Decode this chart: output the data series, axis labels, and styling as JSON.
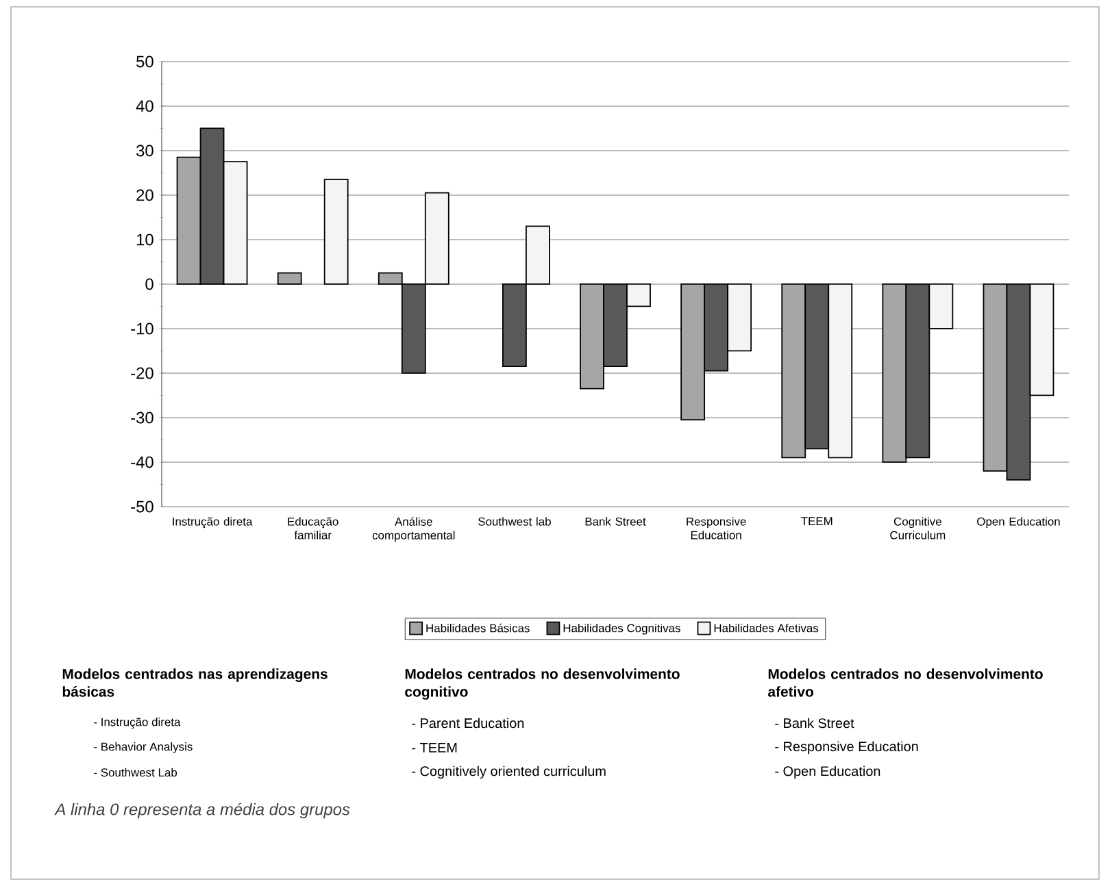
{
  "chart_data": {
    "type": "bar",
    "categories": [
      "Instrução direta",
      "Educação familiar",
      "Análise comportamental",
      "Southwest lab",
      "Bank Street",
      "Responsive Education",
      "TEEM",
      "Cognitive Curriculum",
      "Open Education"
    ],
    "series": [
      {
        "name": "Habilidades Básicas",
        "color": "#a6a6a6",
        "values": [
          28.5,
          2.5,
          2.5,
          null,
          -23.5,
          -30.5,
          -39,
          -40,
          -42
        ]
      },
      {
        "name": "Habilidades Cognitivas",
        "color": "#595959",
        "values": [
          35,
          null,
          -20,
          -18.5,
          -18.5,
          -19.5,
          -37,
          -39,
          -44
        ]
      },
      {
        "name": "Habilidades Afetivas",
        "color": "#f4f4f4",
        "values": [
          27.5,
          23.5,
          20.5,
          13,
          -5,
          -15,
          -39,
          -10,
          -25
        ]
      }
    ],
    "ylim": [
      -50,
      50
    ],
    "yticks": [
      -50,
      -40,
      -30,
      -20,
      -10,
      0,
      10,
      20,
      30,
      40,
      50
    ],
    "grid": "y",
    "legend": "bottom",
    "annotations": [
      "Modelos centrados nas aprendizagens básicas",
      "- Instrução direta",
      "- Behavior Analysis",
      "- Southwest Lab",
      "Modelos centrados no desenvolvimento cognitivo",
      "-   Parent Education",
      "-   TEEM",
      "-   Cognitively oriented curriculum",
      "Modelos centrados no desenvolvimento afetivo",
      "-   Bank Street",
      "-   Responsive Education",
      "-   Open Education",
      "A linha 0 representa a média dos grupos"
    ]
  }
}
